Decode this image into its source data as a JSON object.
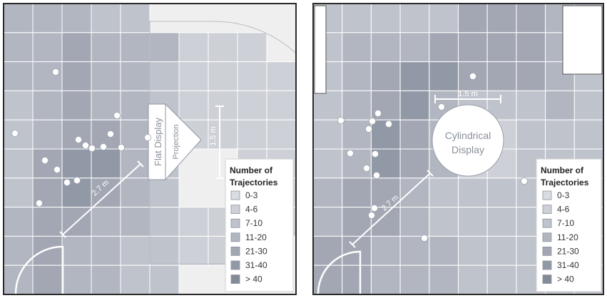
{
  "legend": {
    "title_line1": "Number of",
    "title_line2": "Trajectories",
    "items": [
      {
        "label": "0-3",
        "color": "#d9dce1"
      },
      {
        "label": "4-6",
        "color": "#cdd0d6"
      },
      {
        "label": "7-10",
        "color": "#bfc3cb"
      },
      {
        "label": "11-20",
        "color": "#b1b6c0"
      },
      {
        "label": "21-30",
        "color": "#a2a7b3"
      },
      {
        "label": "31-40",
        "color": "#9299a6"
      },
      {
        "label": "> 40",
        "color": "#838a98"
      }
    ]
  },
  "left_panel": {
    "display_label": "Flat Display",
    "projection_label": "Projection",
    "dimension_width": "1.5 m",
    "dimension_distance": "2.7 m"
  },
  "right_panel": {
    "display_label_line1": "Cylindrical",
    "display_label_line2": "Display",
    "dimension_width": "1.5 m",
    "dimension_distance": "2.7 m"
  },
  "colors": {
    "frame": "#2a2a2a",
    "floor_background": "#efeff0",
    "grid_line": "#ffffff",
    "marker": "#ffffff"
  }
}
